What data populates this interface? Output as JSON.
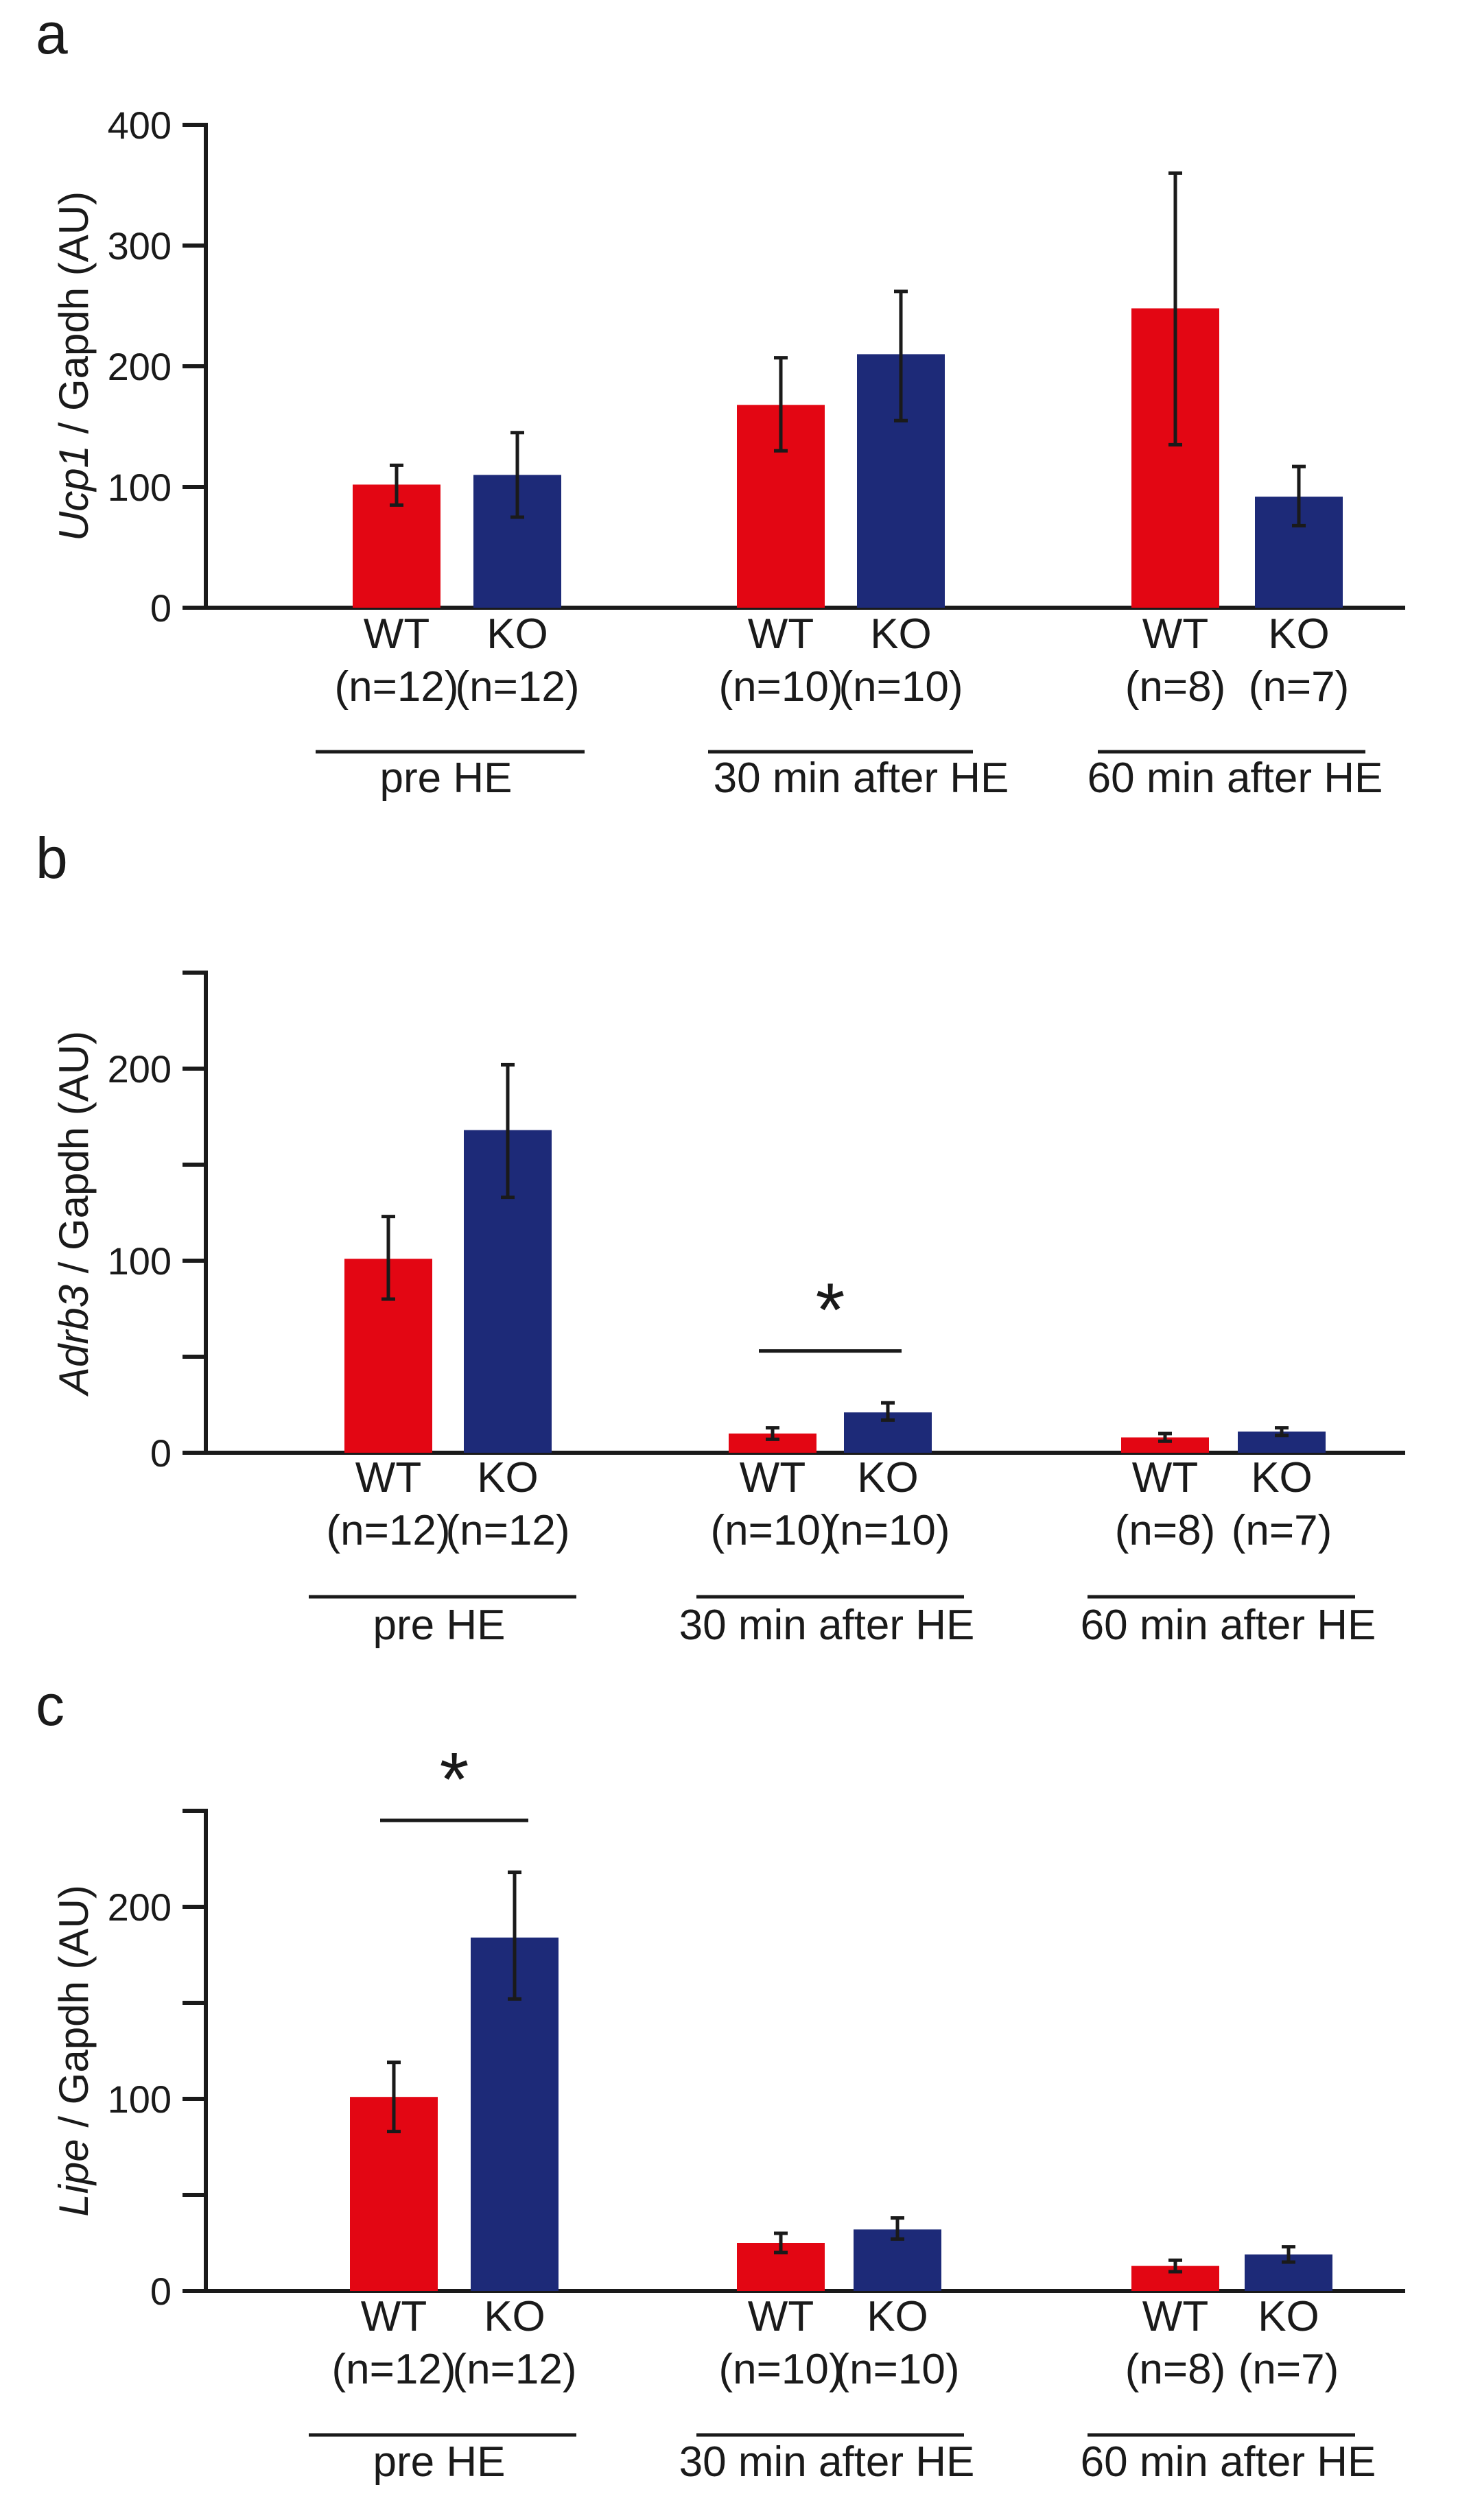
{
  "colors": {
    "wt": "#e30613",
    "ko": "#1d2a78",
    "ink": "#1a1a1a"
  },
  "groups": [
    {
      "label": "pre HE",
      "bars": [
        {
          "genotype": "WT",
          "n": "(n=12)"
        },
        {
          "genotype": "KO",
          "n": "(n=12)"
        }
      ]
    },
    {
      "label": "30 min after HE",
      "bars": [
        {
          "genotype": "WT",
          "n": "(n=10)"
        },
        {
          "genotype": "KO",
          "n": "(n=10)"
        }
      ]
    },
    {
      "label": "60 min after HE",
      "bars": [
        {
          "genotype": "WT",
          "n": "(n=8)"
        },
        {
          "genotype": "KO",
          "n": "(n=7)"
        }
      ]
    }
  ],
  "chart_data": [
    {
      "type": "bar",
      "panel": "a",
      "ylabel_gene": "Ucp1",
      "ylabel_rest": "/ Gapdh (AU)",
      "ylim": [
        0,
        400
      ],
      "yticks": [
        0,
        100,
        200,
        300,
        400
      ],
      "ytick_labels": [
        "0",
        "100",
        "200",
        "300",
        "400"
      ],
      "series": [
        {
          "name": "WT",
          "values": [
            102,
            168,
            248
          ],
          "err_low": [
            85,
            130,
            135
          ],
          "err_high": [
            118,
            207,
            360
          ]
        },
        {
          "name": "KO",
          "values": [
            110,
            210,
            92
          ],
          "err_low": [
            75,
            155,
            68
          ],
          "err_high": [
            145,
            262,
            117
          ]
        }
      ],
      "significance": []
    },
    {
      "type": "bar",
      "panel": "b",
      "ylabel_gene": "Adrb3",
      "ylabel_rest": "/ Gapdh (AU)",
      "ylim": [
        0,
        250
      ],
      "yticks": [
        0,
        50,
        100,
        150,
        200,
        250
      ],
      "ytick_labels": [
        "0",
        "",
        "100",
        "",
        "200",
        ""
      ],
      "series": [
        {
          "name": "WT",
          "values": [
            101,
            10,
            8
          ],
          "err_low": [
            80,
            7,
            6
          ],
          "err_high": [
            123,
            13,
            10
          ]
        },
        {
          "name": "KO",
          "values": [
            168,
            21,
            11
          ],
          "err_low": [
            133,
            17,
            9
          ],
          "err_high": [
            202,
            26,
            13
          ]
        }
      ],
      "significance": [
        {
          "group": 1,
          "label": "*",
          "at": 53
        }
      ]
    },
    {
      "type": "bar",
      "panel": "c",
      "ylabel_gene": "Lipe",
      "ylabel_rest": "/ Gapdh (AU)",
      "ylim": [
        0,
        250
      ],
      "yticks": [
        0,
        50,
        100,
        150,
        200,
        250
      ],
      "ytick_labels": [
        "0",
        "",
        "100",
        "",
        "200",
        ""
      ],
      "series": [
        {
          "name": "WT",
          "values": [
            101,
            25,
            13
          ],
          "err_low": [
            83,
            20,
            10
          ],
          "err_high": [
            119,
            30,
            16
          ]
        },
        {
          "name": "KO",
          "values": [
            184,
            32,
            19
          ],
          "err_low": [
            152,
            27,
            15
          ],
          "err_high": [
            218,
            38,
            23
          ]
        }
      ],
      "significance": [
        {
          "group": 0,
          "label": "*",
          "at": 245
        }
      ]
    }
  ]
}
